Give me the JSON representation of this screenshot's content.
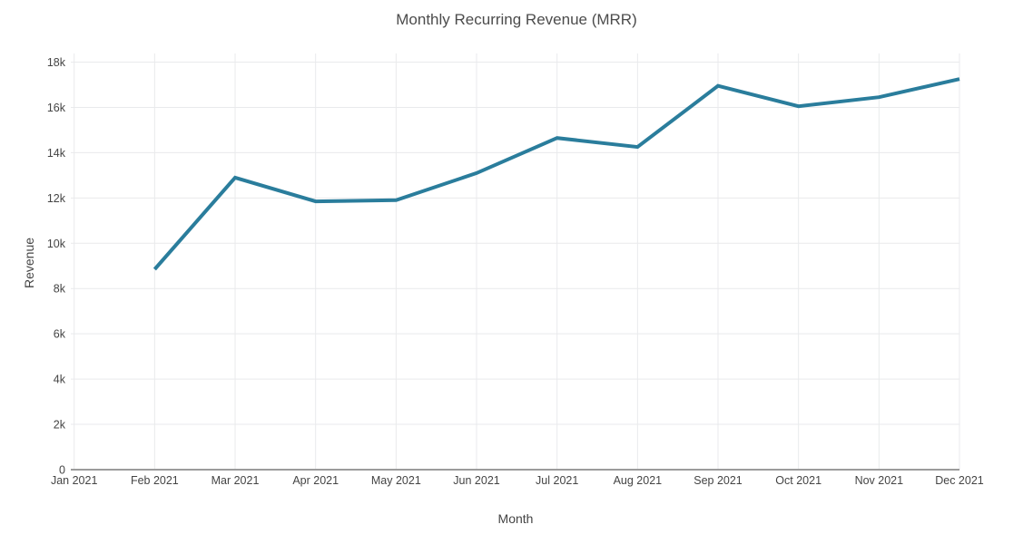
{
  "chart_data": {
    "type": "line",
    "title": "Monthly Recurring Revenue (MRR)",
    "xlabel": "Month",
    "ylabel": "Revenue",
    "x_ticks": [
      "Jan 2021",
      "Feb 2021",
      "Mar 2021",
      "Apr 2021",
      "May 2021",
      "Jun 2021",
      "Jul 2021",
      "Aug 2021",
      "Sep 2021",
      "Oct 2021",
      "Nov 2021",
      "Dec 2021"
    ],
    "y_tick_labels": [
      "0",
      "2k",
      "4k",
      "6k",
      "8k",
      "10k",
      "12k",
      "14k",
      "16k",
      "18k"
    ],
    "ylim": [
      0,
      18000
    ],
    "y_tick_step": 2000,
    "grid": true,
    "legend": "none",
    "series": [
      {
        "x": [
          "Feb 2021",
          "Mar 2021",
          "Apr 2021",
          "May 2021",
          "Jun 2021",
          "Jul 2021",
          "Aug 2021",
          "Sep 2021",
          "Oct 2021",
          "Nov 2021",
          "Dec 2021"
        ],
        "values": [
          8850,
          12900,
          11850,
          11900,
          13100,
          14650,
          14250,
          16950,
          16050,
          16450,
          17250
        ],
        "color": "#2a7d9c",
        "line_width": 4
      }
    ]
  },
  "colors": {
    "background": "#ffffff",
    "grid_line": "#e9eaec",
    "axis_line": "#9b9b9b",
    "tick_text": "#444444",
    "title_text": "#4c4c4c",
    "series_line": "#2a7d9c"
  }
}
